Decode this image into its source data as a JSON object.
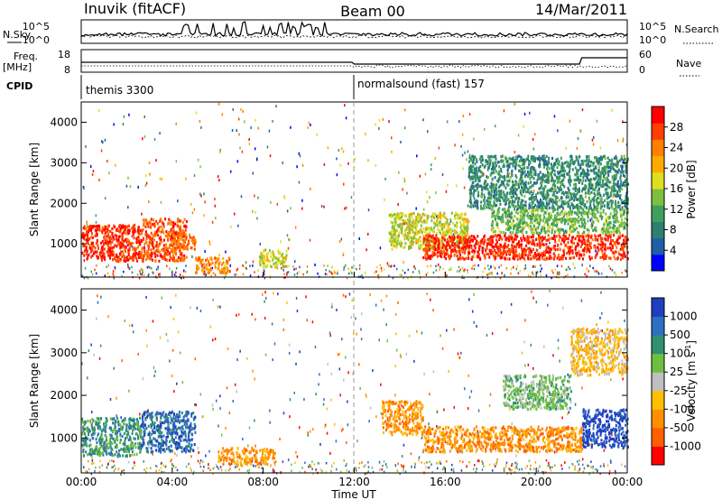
{
  "header": {
    "station": "Inuvik (fitACF)",
    "beam": "Beam 00",
    "date": "14/Mar/2011"
  },
  "left_labels": {
    "nsky": "N.Sky",
    "freq": "Freq.",
    "freq_unit": "[MHz]",
    "cpid": "CPID"
  },
  "right_labels": {
    "nsearch": "N.Search",
    "nave": "Nave"
  },
  "cpid_segments": [
    {
      "label": "themis 3300",
      "start": 0
    },
    {
      "label": "normalsound (fast) 157",
      "start": 12
    }
  ],
  "noise_axis": {
    "left_ticks": [
      "10^5",
      "10^0"
    ],
    "right_ticks": [
      "10^5",
      "10^0"
    ]
  },
  "freq_axis": {
    "left_ticks": [
      "18",
      "8"
    ],
    "right_ticks": [
      "60",
      "0"
    ]
  },
  "time_axis": {
    "xlabel": "Time UT",
    "ticks": [
      "00:00",
      "04:00",
      "08:00",
      "12:00",
      "16:00",
      "20:00",
      "00:00"
    ]
  },
  "range_axis": {
    "ylabel": "Slant Range [km]",
    "ticks": [
      "1000",
      "2000",
      "3000",
      "4000"
    ]
  },
  "power_scale": {
    "label": "Power [dB]",
    "ticks": [
      "4",
      "8",
      "12",
      "16",
      "20",
      "24",
      "28"
    ],
    "colors": [
      "#0000ff",
      "#1f5fa8",
      "#2f7f6f",
      "#3f9f5f",
      "#7fbf3f",
      "#dfdf1f",
      "#ffaa00",
      "#ff7f00",
      "#ff3f00",
      "#ff0000"
    ]
  },
  "velocity_scale": {
    "label": "Velocity [m s",
    "label_sup": "-1",
    "label_end": "]",
    "ticks": [
      "1000",
      "500",
      "100",
      "25",
      "-25",
      "-100",
      "-500",
      "-1000"
    ],
    "colors": [
      "#1f3fbf",
      "#2f6fbf",
      "#2f8f6f",
      "#6fbf3f",
      "#bfbfbf",
      "#ffbf00",
      "#ff8f00",
      "#ff5f00",
      "#ff0000"
    ]
  },
  "chart_data": [
    {
      "type": "heatmap",
      "title": "Power [dB]",
      "xlabel": "Time UT",
      "ylabel": "Slant Range [km]",
      "xlim": [
        0,
        24
      ],
      "ylim": [
        180,
        4500
      ],
      "xticks": [
        "00:00",
        "04:00",
        "08:00",
        "12:00",
        "16:00",
        "20:00",
        "00:00"
      ],
      "yticks": [
        1000,
        2000,
        3000,
        4000
      ],
      "colorbar": {
        "label": "Power [dB]",
        "ticks": [
          4,
          8,
          12,
          16,
          20,
          24,
          28
        ]
      },
      "regions": [
        {
          "t": [
            0.0,
            2.6
          ],
          "r": [
            600,
            1500
          ],
          "value": 28
        },
        {
          "t": [
            2.6,
            4.6
          ],
          "r": [
            600,
            1650
          ],
          "value": 26
        },
        {
          "t": [
            4.0,
            5.0
          ],
          "r": [
            900,
            1300
          ],
          "value": 24
        },
        {
          "t": [
            5.0,
            6.5
          ],
          "r": [
            300,
            700
          ],
          "value": 22
        },
        {
          "t": [
            7.8,
            9.0
          ],
          "r": [
            450,
            900
          ],
          "value": 16
        },
        {
          "t": [
            13.5,
            17.0
          ],
          "r": [
            900,
            1800
          ],
          "value": 16
        },
        {
          "t": [
            15.0,
            24.0
          ],
          "r": [
            650,
            1250
          ],
          "value": 28
        },
        {
          "t": [
            18.0,
            24.0
          ],
          "r": [
            1300,
            1900
          ],
          "value": 12
        },
        {
          "t": [
            17.0,
            24.0
          ],
          "r": [
            1900,
            3200
          ],
          "value": 8
        }
      ]
    },
    {
      "type": "heatmap",
      "title": "Velocity [m s-1]",
      "xlabel": "Time UT",
      "ylabel": "Slant Range [km]",
      "xlim": [
        0,
        24
      ],
      "ylim": [
        180,
        4500
      ],
      "xticks": [
        "00:00",
        "04:00",
        "08:00",
        "12:00",
        "16:00",
        "20:00",
        "00:00"
      ],
      "yticks": [
        1000,
        2000,
        3000,
        4000
      ],
      "colorbar": {
        "label": "Velocity [m s-1]",
        "ticks": [
          1000,
          500,
          100,
          25,
          -25,
          -100,
          -500,
          -1000
        ]
      },
      "regions": [
        {
          "t": [
            0.0,
            2.6
          ],
          "r": [
            600,
            1500
          ],
          "value": 100
        },
        {
          "t": [
            2.6,
            5.0
          ],
          "r": [
            700,
            1650
          ],
          "value": 500
        },
        {
          "t": [
            6.0,
            8.5
          ],
          "r": [
            400,
            800
          ],
          "value": -500
        },
        {
          "t": [
            13.2,
            15.0
          ],
          "r": [
            1100,
            1900
          ],
          "value": -500
        },
        {
          "t": [
            15.0,
            22.0
          ],
          "r": [
            700,
            1300
          ],
          "value": -500
        },
        {
          "t": [
            22.0,
            24.0
          ],
          "r": [
            800,
            1700
          ],
          "value": 1000
        },
        {
          "t": [
            18.5,
            21.5
          ],
          "r": [
            1700,
            2500
          ],
          "value": 25
        },
        {
          "t": [
            21.5,
            24.0
          ],
          "r": [
            2500,
            3600
          ],
          "value": -100
        }
      ]
    }
  ]
}
